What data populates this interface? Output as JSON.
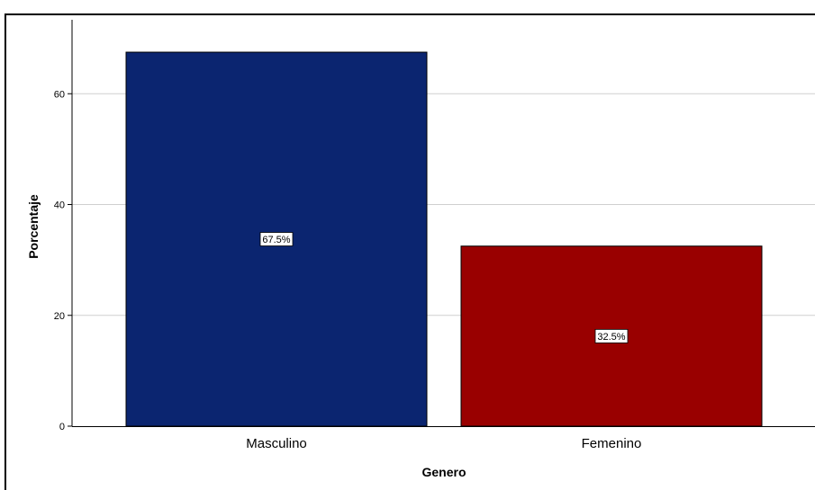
{
  "chart_data": {
    "type": "bar",
    "title": "",
    "xlabel": "Genero",
    "ylabel": "Porcentaje",
    "categories": [
      "Masculino",
      "Femenino"
    ],
    "values": [
      67.5,
      32.5
    ],
    "data_labels": [
      "67.5%",
      "32.5%"
    ],
    "bar_colors": [
      "#0b2570",
      "#990000"
    ],
    "ylim": [
      0,
      75
    ],
    "yticks": [
      0,
      20,
      40,
      60
    ],
    "grid": true,
    "legend": "none"
  }
}
